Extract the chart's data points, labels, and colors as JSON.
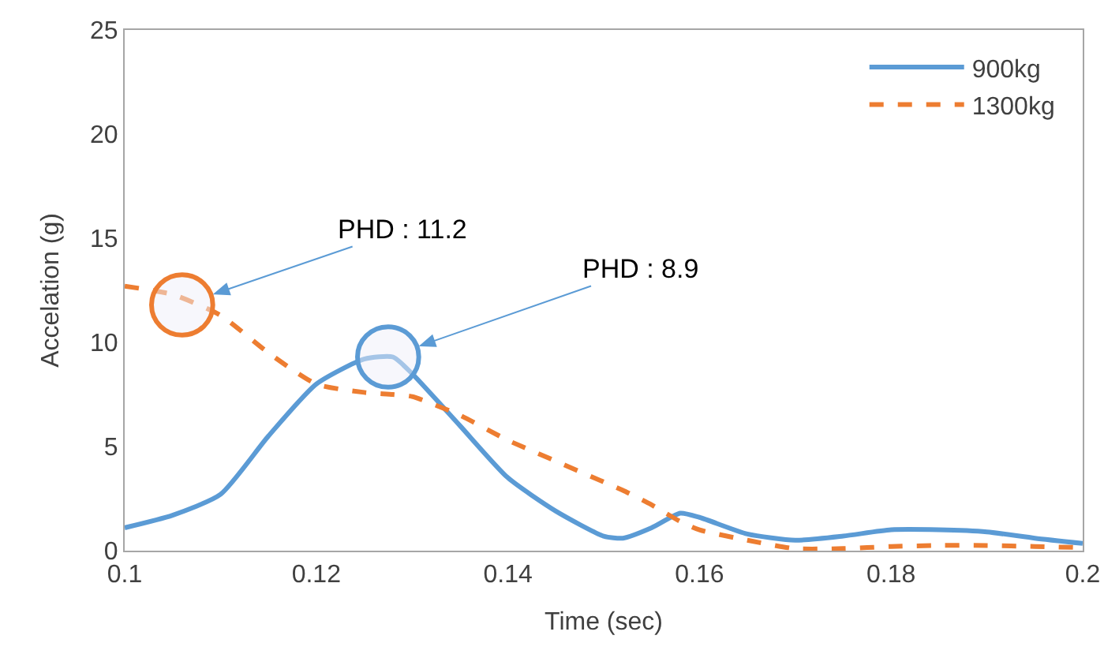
{
  "chart_data": {
    "type": "line",
    "xlabel": "Time (sec)",
    "ylabel": "Accelation (g)",
    "xlim": [
      0.1,
      0.2
    ],
    "xticks": [
      0.1,
      0.12,
      0.14,
      0.16,
      0.18,
      0.2
    ],
    "ylim": [
      0,
      25
    ],
    "yticks": [
      0,
      5,
      10,
      15,
      20,
      25
    ],
    "grid": false,
    "legend": "top right",
    "marker": "none",
    "x": [
      0.1,
      0.105,
      0.11,
      0.115,
      0.12,
      0.125,
      0.128,
      0.13,
      0.135,
      0.14,
      0.145,
      0.15,
      0.152,
      0.155,
      0.158,
      0.16,
      0.165,
      0.17,
      0.175,
      0.18,
      0.185,
      0.19,
      0.195,
      0.2
    ],
    "series": [
      {
        "name": "900kg",
        "color": "#5b9bd5",
        "line_style": "solid",
        "values": [
          1.1,
          1.7,
          2.7,
          5.5,
          8.0,
          9.2,
          9.3,
          8.5,
          6.0,
          3.5,
          1.9,
          0.7,
          0.6,
          1.1,
          1.8,
          1.6,
          0.8,
          0.5,
          0.7,
          1.0,
          1.0,
          0.9,
          0.6,
          0.35
        ]
      },
      {
        "name": "1300kg",
        "color": "#ed7d31",
        "line_style": "dashed",
        "values": [
          12.7,
          12.3,
          11.3,
          9.5,
          8.0,
          7.6,
          7.5,
          7.4,
          6.5,
          5.3,
          4.3,
          3.3,
          2.9,
          2.2,
          1.4,
          1.0,
          0.5,
          0.1,
          0.1,
          0.2,
          0.25,
          0.25,
          0.2,
          0.15
        ]
      }
    ],
    "annotations": [
      {
        "text": "PHD : 11.2",
        "x": 0.106,
        "y": 11.8
      },
      {
        "text": "PHD : 8.9",
        "x": 0.1275,
        "y": 9.3
      }
    ]
  }
}
